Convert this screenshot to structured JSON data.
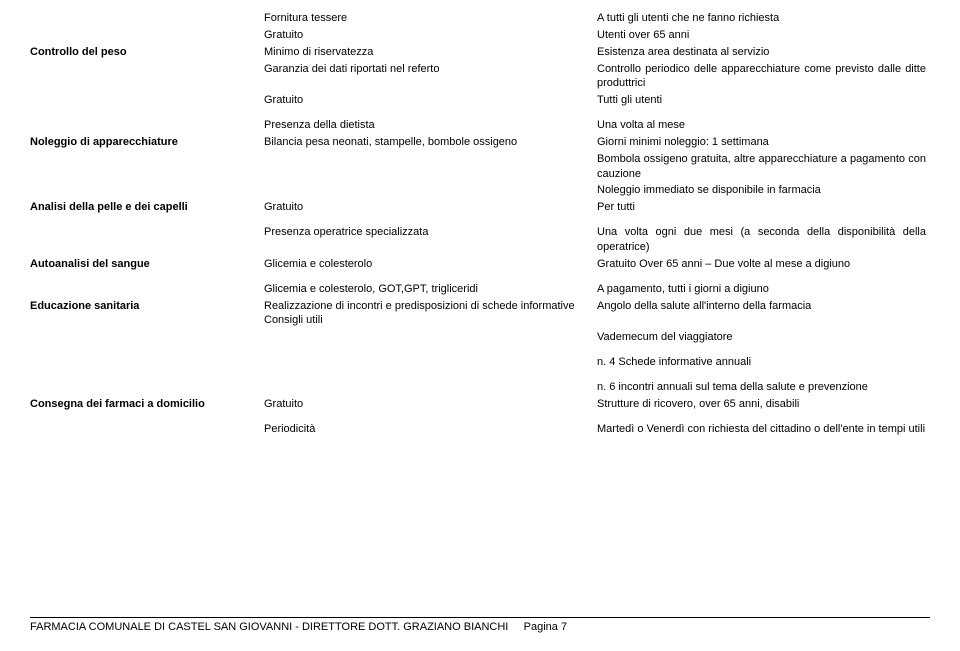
{
  "rows": [
    {
      "c1": "",
      "c2": "Fornitura tessere",
      "c3": "A tutti gli utenti che ne fanno richiesta"
    },
    {
      "c1": "",
      "c2": "Gratuito",
      "c3": "Utenti over 65 anni"
    },
    {
      "c1": "Controllo del peso",
      "c2": "Minimo di riservatezza",
      "c3": "Esistenza area destinata al servizio"
    },
    {
      "c1": "",
      "c2": "Garanzia dei dati riportati nel referto",
      "c3": "Controllo periodico delle apparecchiature come previsto dalle ditte produttrici"
    },
    {
      "c1": "",
      "c2": "Gratuito",
      "c3": "Tutti gli utenti"
    },
    {
      "spacer": true
    },
    {
      "c1": "",
      "c2": "Presenza della dietista",
      "c3": "Una volta al mese"
    },
    {
      "c1": "Noleggio di apparecchiature",
      "c2": "Bilancia pesa neonati, stampelle, bombole ossigeno",
      "c3": "Giorni minimi noleggio: 1 settimana"
    },
    {
      "c1": "",
      "c2": "",
      "c3": "Bombola ossigeno gratuita, altre apparecchiature a pagamento con cauzione"
    },
    {
      "c1": "",
      "c2": "",
      "c3": "Noleggio immediato se disponibile in farmacia"
    },
    {
      "c1": "Analisi della pelle e dei capelli",
      "c2": "Gratuito",
      "c3": "Per tutti"
    },
    {
      "spacer": true
    },
    {
      "c1": "",
      "c2": "Presenza operatrice specializzata",
      "c3": "Una volta ogni due mesi (a seconda della disponibilità della operatrice)"
    },
    {
      "c1": "Autoanalisi del sangue",
      "c2": "Glicemia e colesterolo",
      "c3": "Gratuito Over 65 anni – Due volte al mese a digiuno"
    },
    {
      "spacer": true
    },
    {
      "c1": "",
      "c2": "Glicemia e colesterolo, GOT,GPT, trigliceridi",
      "c3": "A pagamento, tutti i giorni a digiuno"
    },
    {
      "c1": "Educazione sanitaria",
      "c2": "Realizzazione di incontri e predisposizioni di schede informative Consigli utili",
      "c3": "Angolo della salute all'interno della farmacia"
    },
    {
      "c1": "",
      "c2": "",
      "c3": "Vademecum del viaggiatore"
    },
    {
      "spacer": true
    },
    {
      "c1": "",
      "c2": "",
      "c3": "n. 4 Schede informative annuali"
    },
    {
      "spacer": true
    },
    {
      "c1": "",
      "c2": "",
      "c3": "n. 6 incontri annuali sul tema della salute e prevenzione"
    },
    {
      "c1": "Consegna dei farmaci a domicilio",
      "c2": "Gratuito",
      "c3": "Strutture di ricovero, over 65 anni, disabili"
    },
    {
      "spacer": true
    },
    {
      "c1": "",
      "c2": "Periodicità",
      "c3": "Martedì o Venerdì con richiesta del cittadino o dell'ente in tempi utili"
    }
  ],
  "footer": {
    "text": "FARMACIA COMUNALE DI CASTEL SAN GIOVANNI - DIRETTORE DOTT. GRAZIANO BIANCHI",
    "page": "Pagina 7"
  }
}
